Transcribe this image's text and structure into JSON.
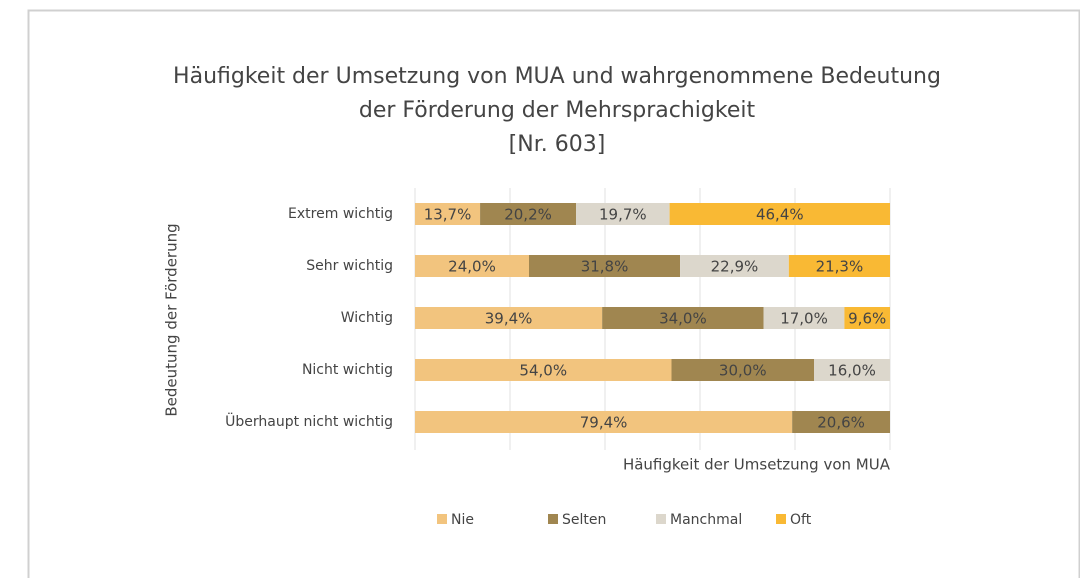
{
  "chart_data": {
    "type": "stacked_bar_horizontal",
    "title": [
      "Häufigkeit der Umsetzung von MUA und wahrgenommene Bedeutung",
      "der Förderung der Mehrsprachigkeit",
      "[Nr. 603]"
    ],
    "x_label": "Häufigkeit der Umsetzung von MUA",
    "y_label": "Bedeutung der Förderung",
    "categories": [
      "Extrem wichtig",
      "Sehr wichtig",
      "Wichtig",
      "Nicht wichtig",
      "Überhaupt nicht wichtig"
    ],
    "xlim": [
      0,
      100
    ],
    "xticks": [
      0,
      20,
      40,
      60,
      80,
      100
    ],
    "grid": true,
    "legend": "bottom",
    "series": [
      {
        "name": "Nie",
        "color": "#f2c47e",
        "values": [
          13.7,
          24.0,
          39.4,
          54.0,
          79.4
        ],
        "value_labels": [
          "13,7%",
          "24,0%",
          "39,4%",
          "54,0%",
          "79,4%"
        ]
      },
      {
        "name": "Selten",
        "color": "#a08650",
        "values": [
          20.2,
          31.8,
          34.0,
          30.0,
          20.6
        ],
        "value_labels": [
          "20,2%",
          "31,8%",
          "34,0%",
          "30,0%",
          "20,6%"
        ]
      },
      {
        "name": "Manchmal",
        "color": "#dcd7cc",
        "values": [
          19.7,
          22.9,
          17.0,
          16.0,
          null
        ],
        "value_labels": [
          "19,7%",
          "22,9%",
          "17,0%",
          "16,0%",
          null
        ]
      },
      {
        "name": "Oft",
        "color": "#f9b934",
        "values": [
          46.4,
          21.3,
          9.6,
          null,
          null
        ],
        "value_labels": [
          "46,4%",
          "21,3%",
          "9,6%",
          null,
          null
        ]
      }
    ]
  }
}
